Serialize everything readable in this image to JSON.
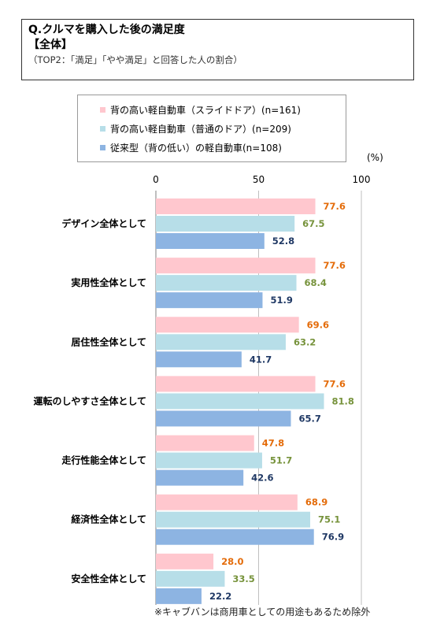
{
  "header": {
    "title": "Q.クルマを購入した後の満足度",
    "subtitle": "【全体】",
    "note": "（TOP2：「満足」「やや満足」と回答した人の割合）"
  },
  "unit_label": "(%)",
  "footnote": "※キャブバンは商用車としての用途もあるため除外",
  "chart_data": {
    "type": "bar",
    "orientation": "horizontal",
    "categories": [
      "デザイン全体として",
      "実用性全体として",
      "居住性全体として",
      "運転のしやすさ全体として",
      "走行性能全体として",
      "経済性全体として",
      "安全性全体として"
    ],
    "series": [
      {
        "name": "背の高い軽自動車（スライドドア）(n=161)",
        "color": "#ffc7ce",
        "label_color": "#e46c0a",
        "values": [
          77.6,
          77.6,
          69.6,
          77.6,
          47.8,
          68.9,
          28.0
        ]
      },
      {
        "name": "背の高い軽自動車（普通のドア）(n=209)",
        "color": "#b7dee8",
        "label_color": "#77933c",
        "values": [
          67.5,
          68.4,
          63.2,
          81.8,
          51.7,
          75.1,
          33.5
        ]
      },
      {
        "name": "従来型（背の低い）の軽自動車(n=108)",
        "color": "#8db4e2",
        "label_color": "#1f3864",
        "values": [
          52.8,
          51.9,
          41.7,
          65.7,
          42.6,
          76.9,
          22.2
        ]
      }
    ],
    "xlim": [
      0,
      100
    ],
    "xticks": [
      "0",
      "50",
      "100"
    ],
    "grid": "vertical gridlines at 50 and 100",
    "legend_position": "top"
  }
}
